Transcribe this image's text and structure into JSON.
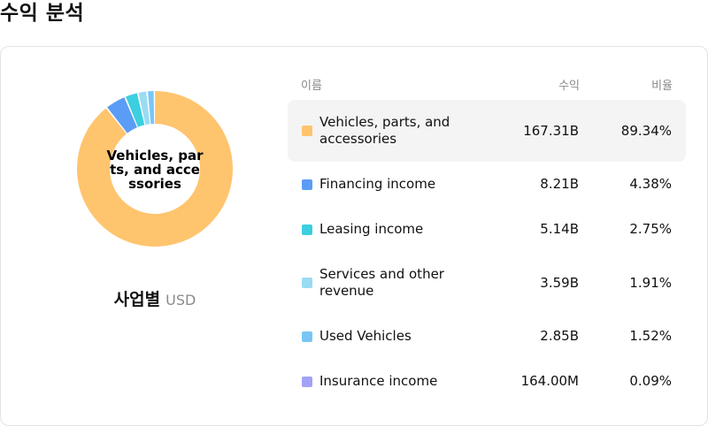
{
  "page": {
    "title": "수익 분석"
  },
  "donut": {
    "center_label": "Vehicles, parts, and accessories"
  },
  "segment": {
    "title": "사업별",
    "unit": "USD"
  },
  "table": {
    "headers": {
      "name": "이름",
      "revenue": "수익",
      "ratio": "비율"
    },
    "rows": [
      {
        "name": "Vehicles, parts, and accessories",
        "revenue": "167.31B",
        "ratio": "89.34%",
        "color": "#FFC46E"
      },
      {
        "name": "Financing income",
        "revenue": "8.21B",
        "ratio": "4.38%",
        "color": "#5B9CF6"
      },
      {
        "name": "Leasing income",
        "revenue": "5.14B",
        "ratio": "2.75%",
        "color": "#3CCFE0"
      },
      {
        "name": "Services and other revenue",
        "revenue": "3.59B",
        "ratio": "1.91%",
        "color": "#9ADCF2"
      },
      {
        "name": "Used Vehicles",
        "revenue": "2.85B",
        "ratio": "1.52%",
        "color": "#79C6F5"
      },
      {
        "name": "Insurance income",
        "revenue": "164.00M",
        "ratio": "0.09%",
        "color": "#A3A3F5"
      }
    ]
  },
  "chart_data": {
    "type": "pie",
    "donut": true,
    "labels": [
      "Vehicles, parts, and accessories",
      "Financing income",
      "Leasing income",
      "Services and other revenue",
      "Used Vehicles",
      "Insurance income"
    ],
    "values": [
      89.34,
      4.38,
      2.75,
      1.91,
      1.52,
      0.09
    ],
    "colors": [
      "#FFC46E",
      "#5B9CF6",
      "#3CCFE0",
      "#9ADCF2",
      "#79C6F5",
      "#A3A3F5"
    ]
  }
}
